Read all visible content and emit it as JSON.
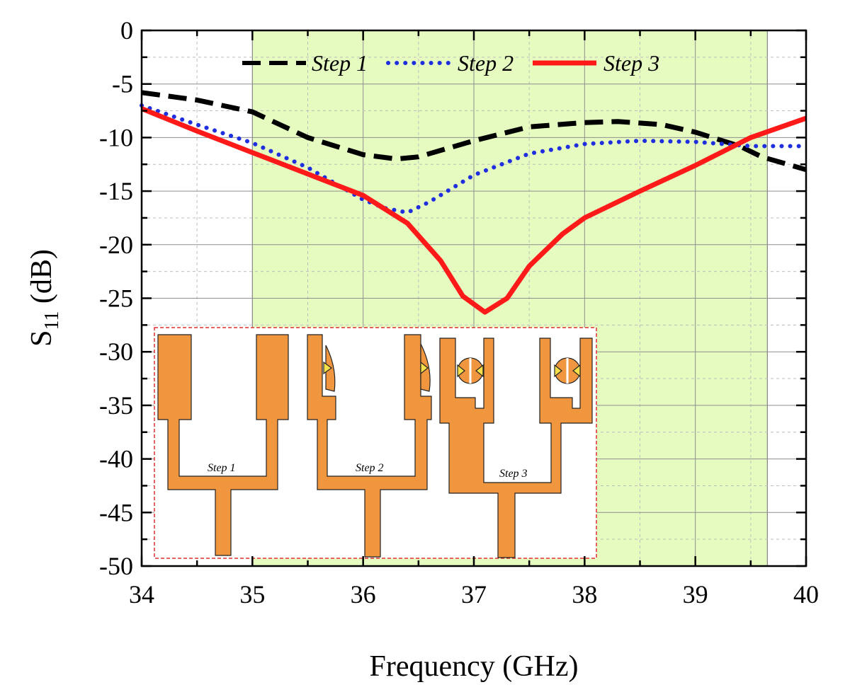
{
  "chart_data": {
    "type": "line",
    "xlabel": "Frequency (GHz)",
    "ylabel_main": "S",
    "ylabel_sub": "11",
    "ylabel_unit": " (dB)",
    "xlim": [
      34,
      40
    ],
    "ylim": [
      -50,
      0
    ],
    "xticks": [
      34,
      35,
      36,
      37,
      38,
      39,
      40
    ],
    "yticks": [
      0,
      -5,
      -10,
      -15,
      -20,
      -25,
      -30,
      -35,
      -40,
      -45,
      -50
    ],
    "highlight_band": {
      "from": 35.0,
      "to": 39.65,
      "color": "#e6fbc0"
    },
    "series": [
      {
        "name": "Step 1",
        "color": "#000000",
        "style": "dashed",
        "x": [
          34,
          34.5,
          35,
          35.5,
          36,
          36.3,
          36.5,
          37,
          37.5,
          38,
          38.3,
          38.7,
          39,
          39.4,
          39.6,
          40
        ],
        "y": [
          -5.8,
          -6.5,
          -7.6,
          -10,
          -11.6,
          -12,
          -11.8,
          -10.3,
          -9,
          -8.6,
          -8.5,
          -8.8,
          -9.5,
          -10.8,
          -11.8,
          -13
        ]
      },
      {
        "name": "Step 2",
        "color": "#1f2fe0",
        "style": "dotted",
        "x": [
          34,
          34.5,
          35,
          35.5,
          36,
          36.2,
          36.4,
          36.6,
          37,
          37.5,
          38,
          38.5,
          39,
          39.5,
          40
        ],
        "y": [
          -7,
          -8.8,
          -10.5,
          -12.8,
          -15.8,
          -16.6,
          -17,
          -16,
          -13.5,
          -11.5,
          -10.6,
          -10.3,
          -10.4,
          -10.8,
          -10.8
        ]
      },
      {
        "name": "Step 3",
        "color": "#ff1a1a",
        "style": "solid",
        "x": [
          34,
          34.5,
          35,
          35.5,
          36,
          36.4,
          36.7,
          36.9,
          37.1,
          37.3,
          37.5,
          37.8,
          38,
          38.5,
          39,
          39.5,
          40
        ],
        "y": [
          -7.3,
          -9.4,
          -11.4,
          -13.4,
          -15.4,
          -18,
          -21.5,
          -24.8,
          -26.3,
          -25,
          -22,
          -19,
          -17.5,
          -15,
          -12.6,
          -10,
          -8.2
        ]
      }
    ],
    "legend_position": "top",
    "inset": {
      "labels": [
        "Step 1",
        "Step 2",
        "Step 3"
      ],
      "fill_color": "#f0963f"
    }
  }
}
